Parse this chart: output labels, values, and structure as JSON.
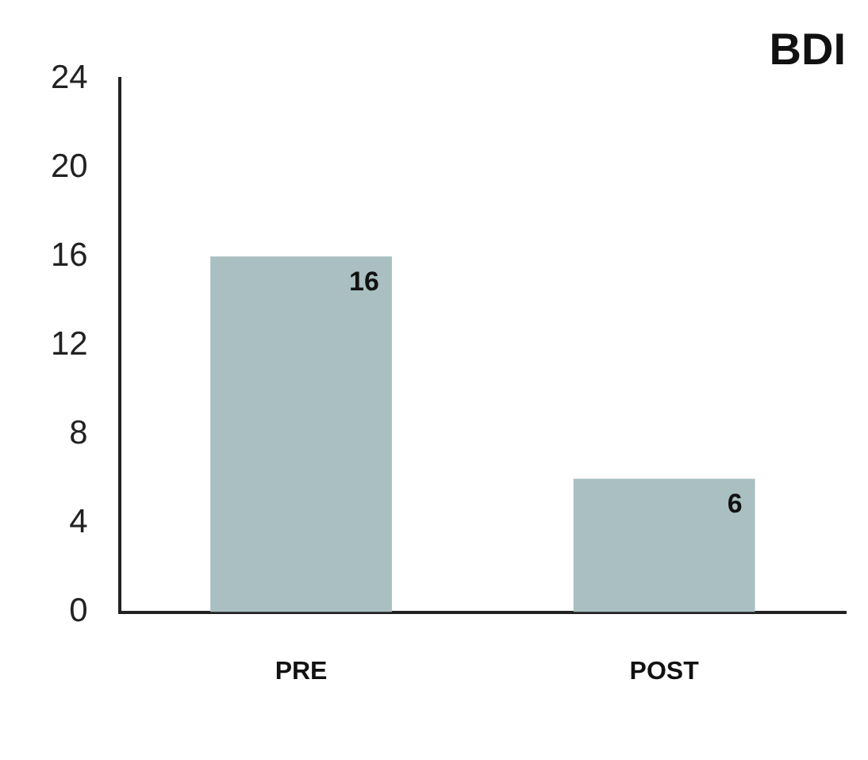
{
  "chart_data": {
    "type": "bar",
    "title": "BDI",
    "categories": [
      "PRE",
      "POST"
    ],
    "values": [
      16,
      6
    ],
    "color": "#a9bfc1",
    "ylim": [
      0,
      24
    ],
    "yticks": [
      0,
      4,
      8,
      12,
      16,
      20,
      24
    ],
    "grid": false,
    "legend": false,
    "data_labels": true
  }
}
